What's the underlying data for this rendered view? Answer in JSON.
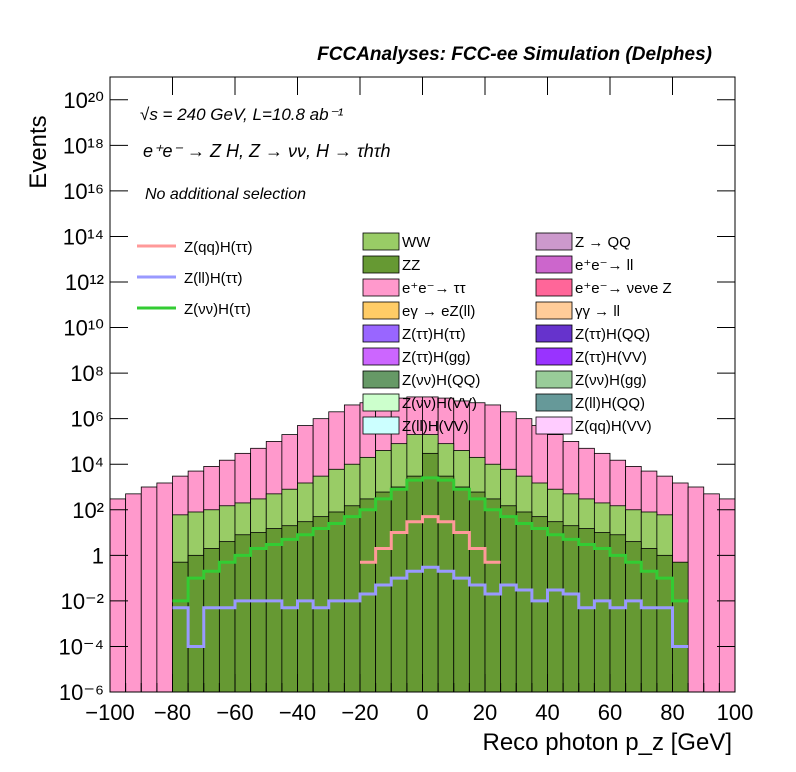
{
  "header": {
    "title": "FCCAnalyses: FCC-ee Simulation (Delphes)"
  },
  "annotations": {
    "energy_lumi": "√s = 240 GeV, L=10.8 ab⁻¹",
    "process": "e⁺e⁻ → Z H, Z → νν, H → τhτh",
    "selection": "No additional selection"
  },
  "legend": {
    "lines": [
      {
        "label": "Z(qq)H(ττ)",
        "color": "#ff9999"
      },
      {
        "label": "Z(ll)H(ττ)",
        "color": "#9999ff"
      },
      {
        "label": "Z(νν)H(ττ)",
        "color": "#33cc33"
      }
    ],
    "fills_col1": [
      {
        "label": "WW",
        "color": "#99cc66"
      },
      {
        "label": "ZZ",
        "color": "#669933"
      },
      {
        "label": "e⁺e⁻→ ττ",
        "color": "#ff99cc"
      },
      {
        "label": "eγ → eZ(ll)",
        "color": "#ffcc66"
      },
      {
        "label": "Z(ττ)H(ττ)",
        "color": "#9966ff"
      },
      {
        "label": "Z(ττ)H(gg)",
        "color": "#cc66ff"
      },
      {
        "label": "Z(νν)H(QQ)",
        "color": "#669966"
      },
      {
        "label": "Z(νν)H(VV)",
        "color": "#ccffcc"
      },
      {
        "label": "Z(ll)H(VV)",
        "color": "#ccffff"
      }
    ],
    "fills_col2": [
      {
        "label": "Z → QQ",
        "color": "#cc99cc"
      },
      {
        "label": "e⁺e⁻→ ll",
        "color": "#cc66cc"
      },
      {
        "label": "e⁺e⁻→ νeνe Z",
        "color": "#ff6699"
      },
      {
        "label": "γγ → ll",
        "color": "#ffcc99"
      },
      {
        "label": "Z(ττ)H(QQ)",
        "color": "#6633cc"
      },
      {
        "label": "Z(ττ)H(VV)",
        "color": "#9933ff"
      },
      {
        "label": "Z(νν)H(gg)",
        "color": "#99cc99"
      },
      {
        "label": "Z(ll)H(QQ)",
        "color": "#669999"
      },
      {
        "label": "Z(qq)H(VV)",
        "color": "#ffccff"
      }
    ]
  },
  "chart_data": {
    "type": "area",
    "xlabel": "Reco photon p_z [GeV]",
    "ylabel": "Events",
    "xlim": [
      -100,
      100
    ],
    "ylim": [
      1e-06,
      1e+21
    ],
    "yscale": "log",
    "x_ticks": [
      "−100",
      "−80",
      "−60",
      "−40",
      "−20",
      "0",
      "20",
      "40",
      "60",
      "80",
      "100"
    ],
    "y_ticks": [
      "10⁻⁶",
      "10⁻⁴",
      "10⁻²",
      "1",
      "10²",
      "10⁴",
      "10⁶",
      "10⁸",
      "10¹⁰",
      "10¹²",
      "10¹⁴",
      "10¹⁶",
      "10¹⁸",
      "10²⁰"
    ],
    "bin_width": 5,
    "stacked_envelopes": [
      {
        "name": "e⁺e⁻→ ττ",
        "color": "#ff99cc",
        "x": [
          -100,
          -95,
          -90,
          -85,
          -80,
          -75,
          -70,
          -65,
          -60,
          -55,
          -50,
          -45,
          -40,
          -35,
          -30,
          -25,
          -20,
          -15,
          -10,
          -5,
          0,
          5,
          10,
          15,
          20,
          25,
          30,
          35,
          40,
          45,
          50,
          55,
          60,
          65,
          70,
          75,
          80,
          85,
          90,
          95
        ],
        "values": [
          300,
          500,
          1000,
          1500,
          3000,
          5000,
          8000,
          15000,
          30000,
          50000,
          100000,
          200000,
          500000,
          1000000,
          2000000,
          4000000,
          5000000,
          6000000,
          8000000,
          9000000,
          9000000,
          8000000,
          6000000,
          5000000,
          4000000,
          2000000,
          1000000,
          500000,
          200000,
          100000,
          50000,
          30000,
          15000,
          8000,
          5000,
          3000,
          1500,
          1000,
          500,
          300
        ]
      },
      {
        "name": "WW",
        "color": "#99cc66",
        "x": [
          -80,
          -75,
          -70,
          -65,
          -60,
          -55,
          -50,
          -45,
          -40,
          -35,
          -30,
          -25,
          -20,
          -15,
          -10,
          -5,
          0,
          5,
          10,
          15,
          20,
          25,
          30,
          35,
          40,
          45,
          50,
          55,
          60,
          65,
          70,
          75
        ],
        "values": [
          60,
          80,
          100,
          150,
          200,
          300,
          500,
          800,
          1500,
          3000,
          6000,
          10000,
          20000,
          40000,
          80000,
          200000,
          200000,
          80000,
          40000,
          20000,
          10000,
          6000,
          3000,
          1500,
          800,
          500,
          300,
          200,
          150,
          100,
          80,
          60
        ]
      },
      {
        "name": "ZZ",
        "color": "#669933",
        "x": [
          -80,
          -75,
          -70,
          -65,
          -60,
          -55,
          -50,
          -45,
          -40,
          -35,
          -30,
          -25,
          -20,
          -15,
          -10,
          -5,
          0,
          5,
          10,
          15,
          20,
          25,
          30,
          35,
          40,
          45,
          50,
          55,
          60,
          65,
          70,
          75,
          80
        ],
        "values": [
          0.5,
          1,
          2,
          4,
          8,
          10,
          15,
          20,
          30,
          50,
          80,
          150,
          300,
          600,
          1000,
          3000,
          30000,
          3000,
          1000,
          600,
          300,
          150,
          80,
          50,
          30,
          20,
          15,
          10,
          8,
          4,
          2,
          1,
          0.5
        ]
      }
    ],
    "line_series": [
      {
        "name": "Z(νν)H(ττ)",
        "color": "#33cc33",
        "x": [
          -80,
          -75,
          -70,
          -65,
          -60,
          -55,
          -50,
          -45,
          -40,
          -35,
          -30,
          -25,
          -20,
          -15,
          -10,
          -5,
          0,
          5,
          10,
          15,
          20,
          25,
          30,
          35,
          40,
          45,
          50,
          55,
          60,
          65,
          70,
          75,
          80
        ],
        "values": [
          0.01,
          0.1,
          0.2,
          0.5,
          1,
          2,
          3,
          5,
          8,
          15,
          25,
          50,
          100,
          300,
          800,
          2000,
          2500,
          2000,
          800,
          300,
          100,
          50,
          25,
          15,
          8,
          5,
          3,
          2,
          1,
          0.5,
          0.2,
          0.1,
          0.01
        ]
      },
      {
        "name": "Z(ll)H(ττ)",
        "color": "#9999ff",
        "x": [
          -80,
          -75,
          -70,
          -65,
          -60,
          -55,
          -50,
          -45,
          -40,
          -35,
          -30,
          -25,
          -20,
          -15,
          -10,
          -5,
          0,
          5,
          10,
          15,
          20,
          25,
          30,
          35,
          40,
          45,
          50,
          55,
          60,
          65,
          70,
          75,
          80
        ],
        "values": [
          0.005,
          0.0001,
          0.005,
          0.005,
          0.01,
          0.01,
          0.01,
          0.005,
          0.01,
          0.005,
          0.01,
          0.01,
          0.02,
          0.05,
          0.1,
          0.2,
          0.3,
          0.2,
          0.1,
          0.05,
          0.02,
          0.05,
          0.03,
          0.01,
          0.03,
          0.02,
          0.005,
          0.01,
          0.005,
          0.01,
          0.005,
          0.005,
          0.0001
        ]
      },
      {
        "name": "Z(qq)H(ττ)",
        "color": "#ff9999",
        "x": [
          -20,
          -15,
          -10,
          -5,
          0,
          5,
          10,
          15,
          20
        ],
        "values": [
          0.5,
          2,
          10,
          30,
          50,
          30,
          10,
          2,
          0.5
        ]
      }
    ]
  }
}
